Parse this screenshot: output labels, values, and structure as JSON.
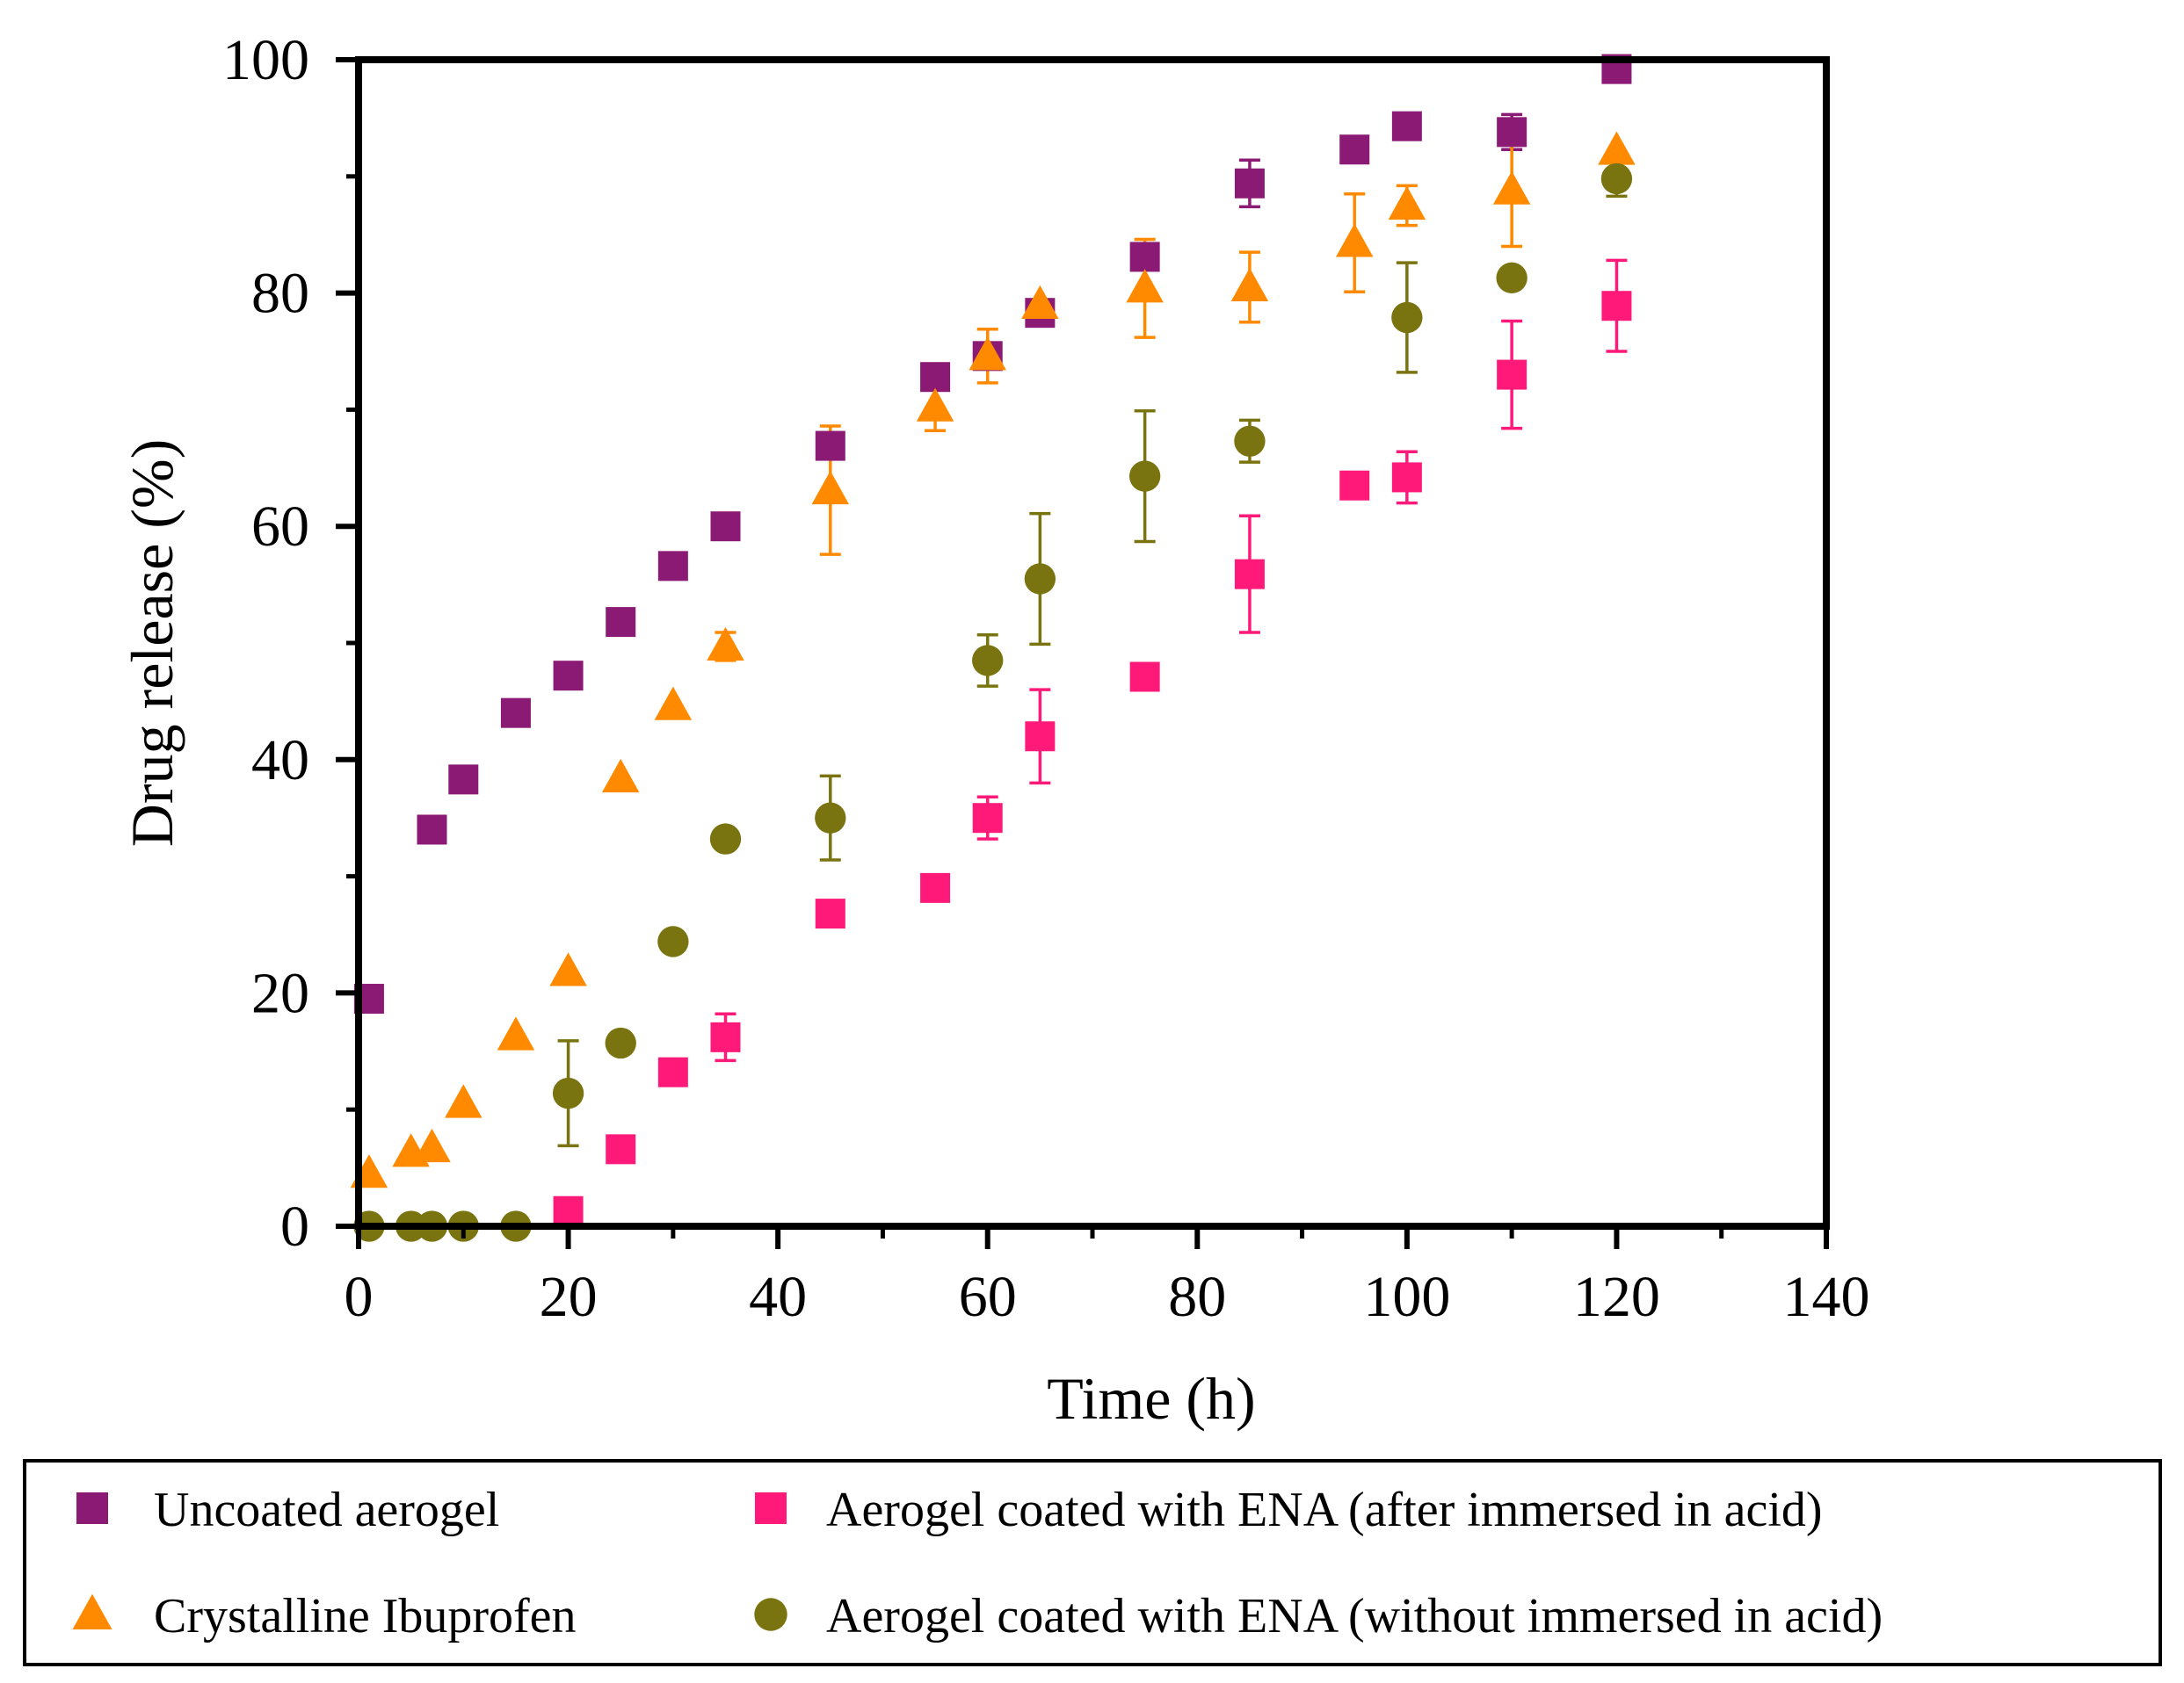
{
  "chart_data": {
    "type": "scatter",
    "title": "",
    "xlabel": "Time (h)",
    "ylabel": "Drug release (%)",
    "xlim": [
      0,
      140
    ],
    "ylim": [
      0,
      100
    ],
    "x_ticks": [
      "0",
      "20",
      "40",
      "60",
      "80",
      "100",
      "120",
      "140"
    ],
    "y_ticks": [
      "0",
      "20",
      "40",
      "60",
      "80",
      "100"
    ],
    "grid": false,
    "legend_placement": "bottom (outside, boxed, 2 columns)",
    "series": [
      {
        "name": "Uncoated aerogel",
        "marker": "square",
        "color": "#8b1a74",
        "points": [
          {
            "x": 1,
            "y": 19.5,
            "err": 0
          },
          {
            "x": 7,
            "y": 34,
            "err": 0
          },
          {
            "x": 10,
            "y": 38.3,
            "err": 0
          },
          {
            "x": 15,
            "y": 44,
            "err": 0
          },
          {
            "x": 20,
            "y": 47.2,
            "err": 0
          },
          {
            "x": 25,
            "y": 51.8,
            "err": 0
          },
          {
            "x": 30,
            "y": 56.6,
            "err": 0
          },
          {
            "x": 35,
            "y": 60,
            "err": 0
          },
          {
            "x": 45,
            "y": 66.9,
            "err": 0
          },
          {
            "x": 55,
            "y": 72.8,
            "err": 0
          },
          {
            "x": 60,
            "y": 74.6,
            "err": 0
          },
          {
            "x": 65,
            "y": 78.3,
            "err": 0
          },
          {
            "x": 75,
            "y": 83.1,
            "err": 1
          },
          {
            "x": 85,
            "y": 89.4,
            "err": 2
          },
          {
            "x": 95,
            "y": 92.3,
            "err": 1
          },
          {
            "x": 100,
            "y": 94.3,
            "err": 0
          },
          {
            "x": 110,
            "y": 93.8,
            "err": 1.5
          },
          {
            "x": 120,
            "y": 99.2,
            "err": 0
          }
        ]
      },
      {
        "name": "Crystalline Ibuprofen",
        "marker": "triangle",
        "color": "#ff8a00",
        "points": [
          {
            "x": 1,
            "y": 4.5,
            "err": 0
          },
          {
            "x": 5,
            "y": 6.3,
            "err": 0
          },
          {
            "x": 7,
            "y": 6.7,
            "err": 0
          },
          {
            "x": 10,
            "y": 10.5,
            "err": 0
          },
          {
            "x": 15,
            "y": 16.3,
            "err": 0
          },
          {
            "x": 20,
            "y": 21.8,
            "err": 0
          },
          {
            "x": 25,
            "y": 38.4,
            "err": 0
          },
          {
            "x": 30,
            "y": 44.6,
            "err": 0
          },
          {
            "x": 35,
            "y": 49.7,
            "err": 1.2
          },
          {
            "x": 45,
            "y": 63.1,
            "err": 5.5
          },
          {
            "x": 55,
            "y": 70.2,
            "err": 2
          },
          {
            "x": 60,
            "y": 74.6,
            "err": 2.3
          },
          {
            "x": 65,
            "y": 79,
            "err": 0
          },
          {
            "x": 75,
            "y": 80.4,
            "err": 4.2
          },
          {
            "x": 85,
            "y": 80.5,
            "err": 3
          },
          {
            "x": 95,
            "y": 84.3,
            "err": 4.2
          },
          {
            "x": 100,
            "y": 87.5,
            "err": 1.7
          },
          {
            "x": 110,
            "y": 88.8,
            "err": 4.8
          },
          {
            "x": 120,
            "y": 92.2,
            "err": 0
          }
        ]
      },
      {
        "name": "Aerogel coated with ENA (after immersed in acid)",
        "marker": "square",
        "color": "#ff1a7a",
        "points": [
          {
            "x": 20,
            "y": 1.3,
            "err": 0
          },
          {
            "x": 25,
            "y": 6.6,
            "err": 0
          },
          {
            "x": 30,
            "y": 13.2,
            "err": 0
          },
          {
            "x": 35,
            "y": 16.2,
            "err": 2
          },
          {
            "x": 45,
            "y": 26.8,
            "err": 0
          },
          {
            "x": 55,
            "y": 29,
            "err": 0
          },
          {
            "x": 60,
            "y": 35,
            "err": 1.8
          },
          {
            "x": 65,
            "y": 42,
            "err": 4
          },
          {
            "x": 75,
            "y": 47.1,
            "err": 0
          },
          {
            "x": 85,
            "y": 55.9,
            "err": 5
          },
          {
            "x": 95,
            "y": 63.5,
            "err": 0
          },
          {
            "x": 100,
            "y": 64.2,
            "err": 2.2
          },
          {
            "x": 110,
            "y": 73,
            "err": 4.6
          },
          {
            "x": 120,
            "y": 78.9,
            "err": 3.9
          }
        ]
      },
      {
        "name": "Aerogel coated with ENA (without immersed in acid)",
        "marker": "circle",
        "color": "#7a7410",
        "points": [
          {
            "x": 1,
            "y": 0,
            "err": 0
          },
          {
            "x": 5,
            "y": 0,
            "err": 0
          },
          {
            "x": 7,
            "y": 0,
            "err": 0
          },
          {
            "x": 10,
            "y": 0,
            "err": 0
          },
          {
            "x": 15,
            "y": 0,
            "err": 0
          },
          {
            "x": 20,
            "y": 11.4,
            "err": 4.5
          },
          {
            "x": 25,
            "y": 15.7,
            "err": 0
          },
          {
            "x": 30,
            "y": 24.4,
            "err": 0
          },
          {
            "x": 35,
            "y": 33.2,
            "err": 0
          },
          {
            "x": 45,
            "y": 35,
            "err": 3.6
          },
          {
            "x": 60,
            "y": 48.5,
            "err": 2.2
          },
          {
            "x": 65,
            "y": 55.5,
            "err": 5.6
          },
          {
            "x": 75,
            "y": 64.3,
            "err": 5.6
          },
          {
            "x": 85,
            "y": 67.3,
            "err": 1.8
          },
          {
            "x": 100,
            "y": 77.9,
            "err": 4.7
          },
          {
            "x": 110,
            "y": 81.3,
            "err": 0
          },
          {
            "x": 120,
            "y": 89.8,
            "err": 1.5
          }
        ]
      }
    ]
  }
}
